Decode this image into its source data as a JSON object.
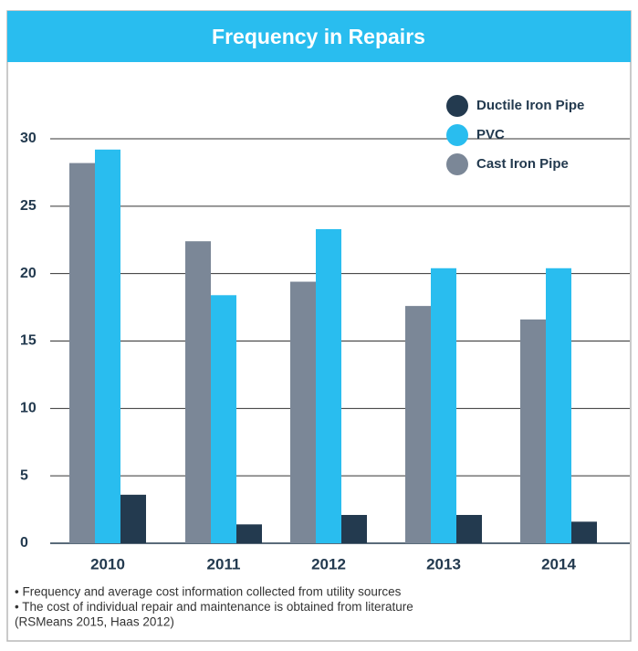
{
  "chart_data": {
    "type": "bar",
    "title": "Frequency in Repairs",
    "categories": [
      "2010",
      "2011",
      "2012",
      "2013",
      "2014"
    ],
    "series": [
      {
        "name": "Ductile Iron Pipe",
        "color": "#233a4f",
        "values": [
          3.6,
          1.4,
          2.1,
          2.1,
          1.6
        ]
      },
      {
        "name": "PVC",
        "color": "#29bdef",
        "values": [
          29.2,
          18.4,
          23.3,
          20.4,
          20.4
        ]
      },
      {
        "name": "Cast Iron Pipe",
        "color": "#7b8797",
        "values": [
          28.2,
          22.4,
          19.4,
          17.6,
          16.6
        ]
      }
    ],
    "ylim": [
      0,
      30
    ],
    "yticks": [
      0,
      5,
      10,
      15,
      20,
      25,
      30
    ],
    "grid": true,
    "legend": "top-right",
    "notes": [
      "• Frequency and average cost information collected from utility sources",
      "• The cost of individual repair and maintenance is obtained from literature",
      " (RSMeans 2015, Haas 2012)"
    ]
  }
}
